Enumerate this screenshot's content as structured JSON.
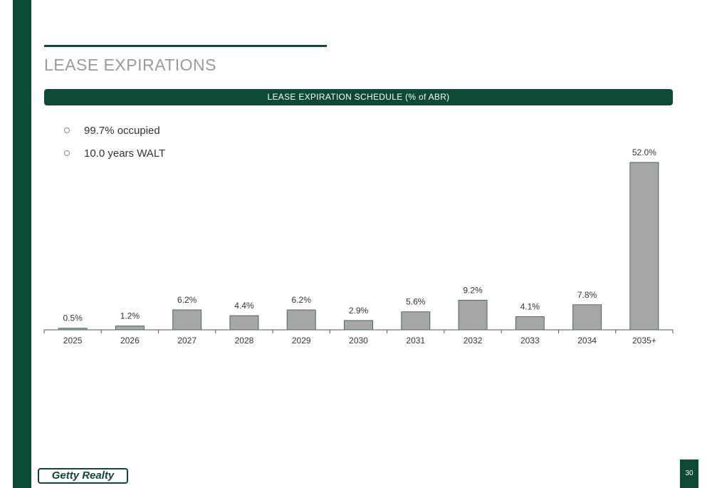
{
  "page": {
    "title": "LEASE EXPIRATIONS",
    "banner": "LEASE EXPIRATION SCHEDULE (% of ABR)",
    "bullets": [
      "99.7% occupied",
      "10.0 years WALT"
    ],
    "logo_text": "Getty Realty",
    "page_number": "30"
  },
  "colors": {
    "brand_green": "#0d4a34",
    "bar_fill": "#a6a6a6",
    "bar_stroke": "#4a6a5a",
    "title_gray": "#9a9a9a"
  },
  "chart_data": {
    "type": "bar",
    "title": "LEASE EXPIRATION SCHEDULE (% of ABR)",
    "categories": [
      "2025",
      "2026",
      "2027",
      "2028",
      "2029",
      "2030",
      "2031",
      "2032",
      "2033",
      "2034",
      "2035+"
    ],
    "values": [
      0.5,
      1.2,
      6.2,
      4.4,
      6.2,
      2.9,
      5.6,
      9.2,
      4.1,
      7.8,
      52.0
    ],
    "labels": [
      "0.5%",
      "1.2%",
      "6.2%",
      "4.4%",
      "6.2%",
      "2.9%",
      "5.6%",
      "9.2%",
      "4.1%",
      "7.8%",
      "52.0%"
    ],
    "ylim": [
      0,
      52
    ],
    "grid": false,
    "legend": "none"
  }
}
